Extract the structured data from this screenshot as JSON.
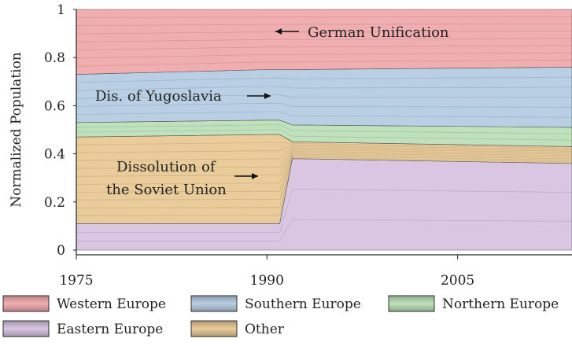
{
  "chart_data": {
    "type": "area",
    "subtype": "stacked-normalized-streamgraph",
    "ylabel": "Normalized Population",
    "xlim": [
      1975,
      2014
    ],
    "ylim": [
      0,
      1
    ],
    "x_ticks": [
      1975,
      1990,
      2005
    ],
    "y_ticks": [
      0,
      0.2,
      0.4,
      0.6,
      0.8,
      1
    ],
    "grid": false,
    "legend_position": "bottom",
    "series": [
      {
        "name": "Eastern Europe",
        "color": "#d9c6e3",
        "x": [
          1975,
          1990,
          1991,
          1992,
          2014
        ],
        "values": [
          0.11,
          0.11,
          0.11,
          0.38,
          0.36
        ]
      },
      {
        "name": "Other",
        "color": "#e9cc9a",
        "x": [
          1975,
          1990,
          1991,
          1992,
          2014
        ],
        "values": [
          0.36,
          0.37,
          0.37,
          0.07,
          0.07
        ]
      },
      {
        "name": "Northern Europe",
        "color": "#bfe1bc",
        "x": [
          1975,
          1990,
          1991,
          1992,
          2014
        ],
        "values": [
          0.06,
          0.06,
          0.06,
          0.07,
          0.08
        ]
      },
      {
        "name": "Southern Europe",
        "color": "#b9cfe3",
        "x": [
          1975,
          1990,
          1991,
          1992,
          2014
        ],
        "values": [
          0.2,
          0.21,
          0.21,
          0.23,
          0.25
        ]
      },
      {
        "name": "Western Europe",
        "color": "#f1aeb0",
        "x": [
          1975,
          1990,
          1991,
          1992,
          2014
        ],
        "values": [
          0.27,
          0.25,
          0.25,
          0.25,
          0.24
        ]
      }
    ],
    "annotations": [
      {
        "text": "German Unification",
        "x": 1990,
        "y": 0.9
      },
      {
        "text": "Dis. of Yugoslavia",
        "x": 1991,
        "y": 0.64
      },
      {
        "text": "Dissolution of",
        "x": 1990,
        "y": 0.31
      },
      {
        "text": "the Soviet Union",
        "x": 1990,
        "y": 0.31
      }
    ],
    "legend": [
      {
        "name": "Western Europe",
        "color": "#f1aeb0"
      },
      {
        "name": "Southern Europe",
        "color": "#b9cfe3"
      },
      {
        "name": "Northern Europe",
        "color": "#bfe1bc"
      },
      {
        "name": "Eastern Europe",
        "color": "#d9c6e3"
      },
      {
        "name": "Other",
        "color": "#e9cc9a"
      }
    ]
  }
}
